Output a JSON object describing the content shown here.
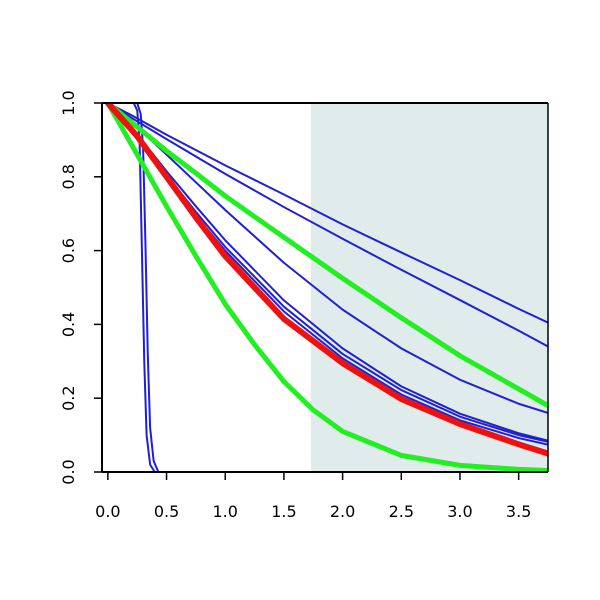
{
  "chart_data": {
    "type": "line",
    "title": "",
    "xlabel": "",
    "ylabel": "",
    "xlim": [
      -0.05,
      3.75
    ],
    "ylim": [
      0,
      1
    ],
    "x_ticks": [
      0.0,
      0.5,
      1.0,
      1.5,
      2.0,
      2.5,
      3.0,
      3.5
    ],
    "x_tick_labels": [
      "0.0",
      "0.5",
      "1.0",
      "1.5",
      "2.0",
      "2.5",
      "3.0",
      "3.5"
    ],
    "y_ticks": [
      0.0,
      0.2,
      0.4,
      0.6,
      0.8,
      1.0
    ],
    "y_tick_labels": [
      "0.0",
      "0.2",
      "0.4",
      "0.6",
      "0.8",
      "1.0"
    ],
    "grid": false,
    "legend": false,
    "shaded_region": {
      "x_start": 1.73,
      "x_end": 3.75,
      "color": "#e0ecec"
    },
    "series": [
      {
        "color": "#2020d0",
        "width": 2,
        "points": [
          [
            -0.05,
            1.0
          ],
          [
            0.22,
            1.0
          ],
          [
            0.25,
            0.98
          ],
          [
            0.27,
            0.9
          ],
          [
            0.29,
            0.6
          ],
          [
            0.31,
            0.3
          ],
          [
            0.33,
            0.1
          ],
          [
            0.36,
            0.02
          ],
          [
            0.4,
            0.0
          ],
          [
            3.75,
            0.0
          ]
        ]
      },
      {
        "color": "#2020d0",
        "width": 2,
        "points": [
          [
            -0.05,
            1.0
          ],
          [
            0.25,
            1.0
          ],
          [
            0.28,
            0.97
          ],
          [
            0.3,
            0.88
          ],
          [
            0.32,
            0.62
          ],
          [
            0.34,
            0.32
          ],
          [
            0.36,
            0.12
          ],
          [
            0.39,
            0.03
          ],
          [
            0.43,
            0.0
          ],
          [
            3.75,
            0.0
          ]
        ]
      },
      {
        "color": "#2020d0",
        "width": 2,
        "points": [
          [
            -0.05,
            1.0
          ],
          [
            0.0,
            1.0
          ],
          [
            0.2,
            0.967
          ],
          [
            0.5,
            0.914
          ],
          [
            1.0,
            0.831
          ],
          [
            1.5,
            0.752
          ],
          [
            2.0,
            0.671
          ],
          [
            2.5,
            0.595
          ],
          [
            3.0,
            0.52
          ],
          [
            3.5,
            0.442
          ],
          [
            3.75,
            0.405
          ]
        ]
      },
      {
        "color": "#2020d0",
        "width": 2,
        "points": [
          [
            -0.05,
            1.0
          ],
          [
            0.0,
            1.0
          ],
          [
            0.2,
            0.96
          ],
          [
            0.5,
            0.902
          ],
          [
            1.0,
            0.808
          ],
          [
            1.5,
            0.718
          ],
          [
            2.0,
            0.632
          ],
          [
            2.5,
            0.548
          ],
          [
            3.0,
            0.466
          ],
          [
            3.5,
            0.383
          ],
          [
            3.75,
            0.34
          ]
        ]
      },
      {
        "color": "#2020d0",
        "width": 2,
        "points": [
          [
            0.0,
            1.0
          ],
          [
            0.25,
            0.935
          ],
          [
            0.5,
            0.86
          ],
          [
            0.75,
            0.785
          ],
          [
            1.0,
            0.71
          ],
          [
            1.5,
            0.567
          ],
          [
            2.0,
            0.44
          ],
          [
            2.5,
            0.335
          ],
          [
            3.0,
            0.25
          ],
          [
            3.5,
            0.185
          ],
          [
            3.75,
            0.16
          ]
        ]
      },
      {
        "color": "#2020d0",
        "width": 2,
        "points": [
          [
            0.0,
            1.0
          ],
          [
            0.25,
            0.915
          ],
          [
            0.5,
            0.815
          ],
          [
            0.75,
            0.72
          ],
          [
            1.0,
            0.628
          ],
          [
            1.5,
            0.465
          ],
          [
            2.0,
            0.335
          ],
          [
            2.5,
            0.232
          ],
          [
            3.0,
            0.158
          ],
          [
            3.5,
            0.105
          ],
          [
            3.75,
            0.085
          ]
        ]
      },
      {
        "color": "#2020d0",
        "width": 2,
        "points": [
          [
            0.0,
            1.0
          ],
          [
            0.25,
            0.91
          ],
          [
            0.5,
            0.805
          ],
          [
            0.75,
            0.705
          ],
          [
            1.0,
            0.61
          ],
          [
            1.5,
            0.448
          ],
          [
            2.0,
            0.32
          ],
          [
            2.5,
            0.222
          ],
          [
            3.0,
            0.15
          ],
          [
            3.5,
            0.1
          ],
          [
            3.75,
            0.082
          ]
        ]
      },
      {
        "color": "#2020d0",
        "width": 2,
        "points": [
          [
            0.0,
            1.0
          ],
          [
            0.25,
            0.905
          ],
          [
            0.5,
            0.798
          ],
          [
            0.75,
            0.695
          ],
          [
            1.0,
            0.6
          ],
          [
            1.5,
            0.435
          ],
          [
            2.0,
            0.308
          ],
          [
            2.5,
            0.21
          ],
          [
            3.0,
            0.14
          ],
          [
            3.5,
            0.092
          ],
          [
            3.75,
            0.074
          ]
        ]
      },
      {
        "color": "#22ee22",
        "width": 5,
        "points": [
          [
            0.0,
            1.0
          ],
          [
            0.25,
            0.935
          ],
          [
            0.5,
            0.87
          ],
          [
            0.75,
            0.81
          ],
          [
            1.0,
            0.748
          ],
          [
            1.5,
            0.636
          ],
          [
            2.0,
            0.525
          ],
          [
            2.5,
            0.418
          ],
          [
            3.0,
            0.315
          ],
          [
            3.5,
            0.225
          ],
          [
            3.75,
            0.18
          ]
        ]
      },
      {
        "color": "#22ee22",
        "width": 5,
        "points": [
          [
            0.0,
            1.0
          ],
          [
            0.25,
            0.86
          ],
          [
            0.5,
            0.72
          ],
          [
            0.75,
            0.585
          ],
          [
            1.0,
            0.455
          ],
          [
            1.25,
            0.345
          ],
          [
            1.5,
            0.245
          ],
          [
            1.75,
            0.168
          ],
          [
            2.0,
            0.11
          ],
          [
            2.5,
            0.045
          ],
          [
            3.0,
            0.018
          ],
          [
            3.5,
            0.007
          ],
          [
            3.75,
            0.004
          ]
        ]
      },
      {
        "color": "#ee1111",
        "width": 6,
        "points": [
          [
            0.0,
            1.0
          ],
          [
            0.25,
            0.91
          ],
          [
            0.5,
            0.8
          ],
          [
            0.75,
            0.69
          ],
          [
            1.0,
            0.585
          ],
          [
            1.5,
            0.415
          ],
          [
            1.75,
            0.355
          ],
          [
            2.0,
            0.295
          ],
          [
            2.5,
            0.198
          ],
          [
            3.0,
            0.13
          ],
          [
            3.5,
            0.075
          ],
          [
            3.75,
            0.05
          ]
        ]
      }
    ]
  }
}
